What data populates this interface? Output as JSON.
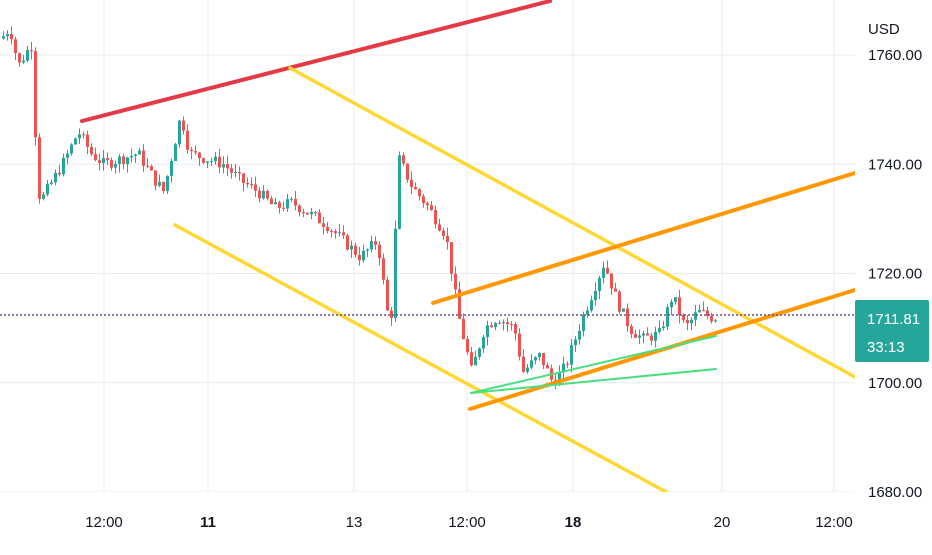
{
  "chart_data": {
    "type": "candlestick",
    "currency": "USD",
    "y_axis_ticks": [
      "1760.00",
      "1740.00",
      "1720.00",
      "1700.00",
      "1680.00"
    ],
    "y_tick_values": [
      1760,
      1740,
      1720,
      1700,
      1680
    ],
    "ylim": [
      1678,
      1765
    ],
    "x_axis_labels": [
      {
        "text": "12:00",
        "bold": false
      },
      {
        "text": "11",
        "bold": true
      },
      {
        "text": "13",
        "bold": false
      },
      {
        "text": "12:00",
        "bold": false
      },
      {
        "text": "18",
        "bold": true
      },
      {
        "text": "20",
        "bold": false
      },
      {
        "text": "12:00",
        "bold": false
      }
    ],
    "last_price": {
      "value": 1711.81,
      "label": "1711.81",
      "countdown": "33:13"
    },
    "colors": {
      "up": "#26a69a",
      "down": "#ef5350",
      "red_line": "#e53945",
      "yellow_channel": "#fdd835",
      "orange_channel": "#ff9800",
      "green_lines": "#4ade80",
      "price_line": "#6b4f8a",
      "axis_bg": "#ffffff",
      "grid": "#e9ecf1",
      "price_badge": "#26a69a"
    },
    "price_path": [
      {
        "x": 0.0,
        "y": 1763
      },
      {
        "x": 0.01,
        "y": 1765
      },
      {
        "x": 0.02,
        "y": 1758
      },
      {
        "x": 0.035,
        "y": 1762
      },
      {
        "x": 0.04,
        "y": 1745
      },
      {
        "x": 0.045,
        "y": 1733
      },
      {
        "x": 0.06,
        "y": 1737
      },
      {
        "x": 0.075,
        "y": 1741
      },
      {
        "x": 0.09,
        "y": 1746
      },
      {
        "x": 0.105,
        "y": 1742
      },
      {
        "x": 0.12,
        "y": 1740
      },
      {
        "x": 0.14,
        "y": 1741
      },
      {
        "x": 0.16,
        "y": 1742
      },
      {
        "x": 0.18,
        "y": 1737
      },
      {
        "x": 0.19,
        "y": 1735
      },
      {
        "x": 0.21,
        "y": 1749
      },
      {
        "x": 0.22,
        "y": 1742
      },
      {
        "x": 0.24,
        "y": 1741
      },
      {
        "x": 0.26,
        "y": 1740
      },
      {
        "x": 0.28,
        "y": 1737
      },
      {
        "x": 0.3,
        "y": 1735
      },
      {
        "x": 0.32,
        "y": 1732
      },
      {
        "x": 0.34,
        "y": 1733
      },
      {
        "x": 0.36,
        "y": 1731
      },
      {
        "x": 0.38,
        "y": 1729
      },
      {
        "x": 0.4,
        "y": 1726
      },
      {
        "x": 0.42,
        "y": 1723
      },
      {
        "x": 0.44,
        "y": 1726
      },
      {
        "x": 0.455,
        "y": 1709
      },
      {
        "x": 0.465,
        "y": 1741
      },
      {
        "x": 0.48,
        "y": 1736
      },
      {
        "x": 0.5,
        "y": 1732
      },
      {
        "x": 0.52,
        "y": 1727
      },
      {
        "x": 0.535,
        "y": 1712
      },
      {
        "x": 0.55,
        "y": 1702
      },
      {
        "x": 0.565,
        "y": 1710
      },
      {
        "x": 0.58,
        "y": 1712
      },
      {
        "x": 0.6,
        "y": 1710
      },
      {
        "x": 0.61,
        "y": 1702
      },
      {
        "x": 0.63,
        "y": 1705
      },
      {
        "x": 0.645,
        "y": 1700
      },
      {
        "x": 0.66,
        "y": 1703
      },
      {
        "x": 0.68,
        "y": 1712
      },
      {
        "x": 0.69,
        "y": 1716
      },
      {
        "x": 0.705,
        "y": 1722
      },
      {
        "x": 0.72,
        "y": 1715
      },
      {
        "x": 0.735,
        "y": 1710
      },
      {
        "x": 0.75,
        "y": 1708
      },
      {
        "x": 0.77,
        "y": 1709
      },
      {
        "x": 0.785,
        "y": 1716
      },
      {
        "x": 0.8,
        "y": 1710
      },
      {
        "x": 0.815,
        "y": 1713
      },
      {
        "x": 0.83,
        "y": 1712
      }
    ]
  }
}
